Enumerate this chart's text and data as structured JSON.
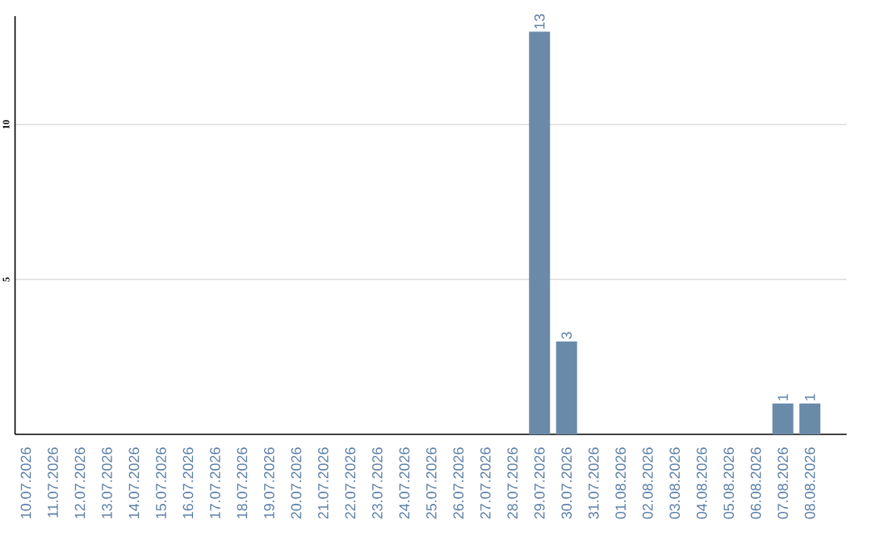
{
  "chart_data": {
    "type": "bar",
    "categories": [
      "10.07.2026",
      "11.07.2026",
      "12.07.2026",
      "13.07.2026",
      "14.07.2026",
      "15.07.2026",
      "16.07.2026",
      "17.07.2026",
      "18.07.2026",
      "19.07.2026",
      "20.07.2026",
      "21.07.2026",
      "22.07.2026",
      "23.07.2026",
      "24.07.2026",
      "25.07.2026",
      "26.07.2026",
      "27.07.2026",
      "28.07.2026",
      "29.07.2026",
      "30.07.2026",
      "31.07.2026",
      "01.08.2026",
      "02.08.2026",
      "03.08.2026",
      "04.08.2026",
      "05.08.2026",
      "06.08.2026",
      "07.08.2026",
      "08.08.2026"
    ],
    "values": [
      0,
      0,
      0,
      0,
      0,
      0,
      0,
      0,
      0,
      0,
      0,
      0,
      0,
      0,
      0,
      0,
      0,
      0,
      0,
      13,
      3,
      0,
      0,
      0,
      0,
      0,
      0,
      0,
      1,
      1
    ],
    "value_labels": [
      null,
      null,
      null,
      null,
      null,
      null,
      null,
      null,
      null,
      null,
      null,
      null,
      null,
      null,
      null,
      null,
      null,
      null,
      null,
      "13",
      "3",
      null,
      null,
      null,
      null,
      null,
      null,
      null,
      "1",
      "1"
    ],
    "color": "#6a8aaa",
    "ylim": [
      0,
      13.5
    ],
    "yticks": [
      5,
      10
    ],
    "grid": "y"
  }
}
